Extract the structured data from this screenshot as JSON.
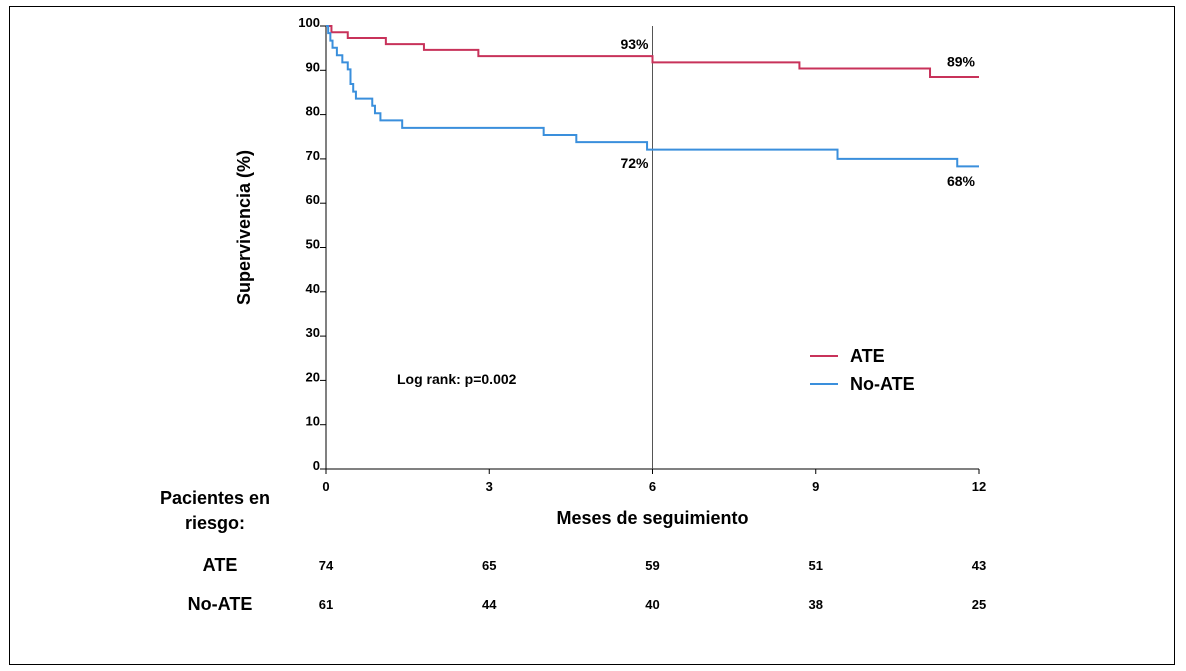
{
  "chart_data": {
    "type": "line",
    "step": true,
    "xlabel": "Meses de seguimiento",
    "ylabel": "Supervivencia (%)",
    "xlim": [
      0,
      12
    ],
    "ylim": [
      0,
      100
    ],
    "xticks": [
      0,
      3,
      6,
      9,
      12
    ],
    "yticks": [
      0,
      10,
      20,
      30,
      40,
      50,
      60,
      70,
      80,
      90,
      100
    ],
    "grid": false,
    "reference_line_x": 6,
    "legend_position": "bottom-right",
    "series": [
      {
        "name": "ATE",
        "color": "#c8325a",
        "x": [
          0,
          0.1,
          0.4,
          1.1,
          1.8,
          2.8,
          6.0,
          8.7,
          11.1,
          12
        ],
        "y": [
          100,
          98.6,
          97.3,
          95.9,
          94.6,
          93.2,
          91.8,
          90.4,
          88.5,
          88.5
        ]
      },
      {
        "name": "No-ATE",
        "color": "#3a8fdc",
        "x": [
          0,
          0.04,
          0.08,
          0.12,
          0.2,
          0.3,
          0.4,
          0.45,
          0.5,
          0.55,
          0.85,
          0.9,
          1.0,
          1.4,
          4.0,
          4.6,
          5.9,
          9.4,
          11.6,
          12
        ],
        "y": [
          100,
          98.4,
          96.7,
          95.1,
          93.4,
          91.8,
          90.2,
          86.9,
          85.2,
          83.6,
          82.0,
          80.3,
          78.7,
          77.0,
          75.4,
          73.8,
          72.1,
          70.0,
          68.3,
          68.3
        ]
      }
    ],
    "annotations": [
      {
        "text": "93%",
        "x": 6,
        "y": 93,
        "series": "ATE",
        "placement": "above"
      },
      {
        "text": "89%",
        "x": 12,
        "y": 89,
        "series": "ATE",
        "placement": "above"
      },
      {
        "text": "72%",
        "x": 6,
        "y": 72,
        "series": "No-ATE",
        "placement": "below"
      },
      {
        "text": "68%",
        "x": 12,
        "y": 68,
        "series": "No-ATE",
        "placement": "below"
      }
    ],
    "stat_text": "Log rank: p=0.002",
    "risk_table": {
      "title_line1": "Pacientes en",
      "title_line2": "riesgo:",
      "times": [
        0,
        3,
        6,
        9,
        12
      ],
      "rows": [
        {
          "label": "ATE",
          "values": [
            74,
            65,
            59,
            51,
            43
          ]
        },
        {
          "label": "No-ATE",
          "values": [
            61,
            44,
            40,
            38,
            25
          ]
        }
      ]
    }
  }
}
